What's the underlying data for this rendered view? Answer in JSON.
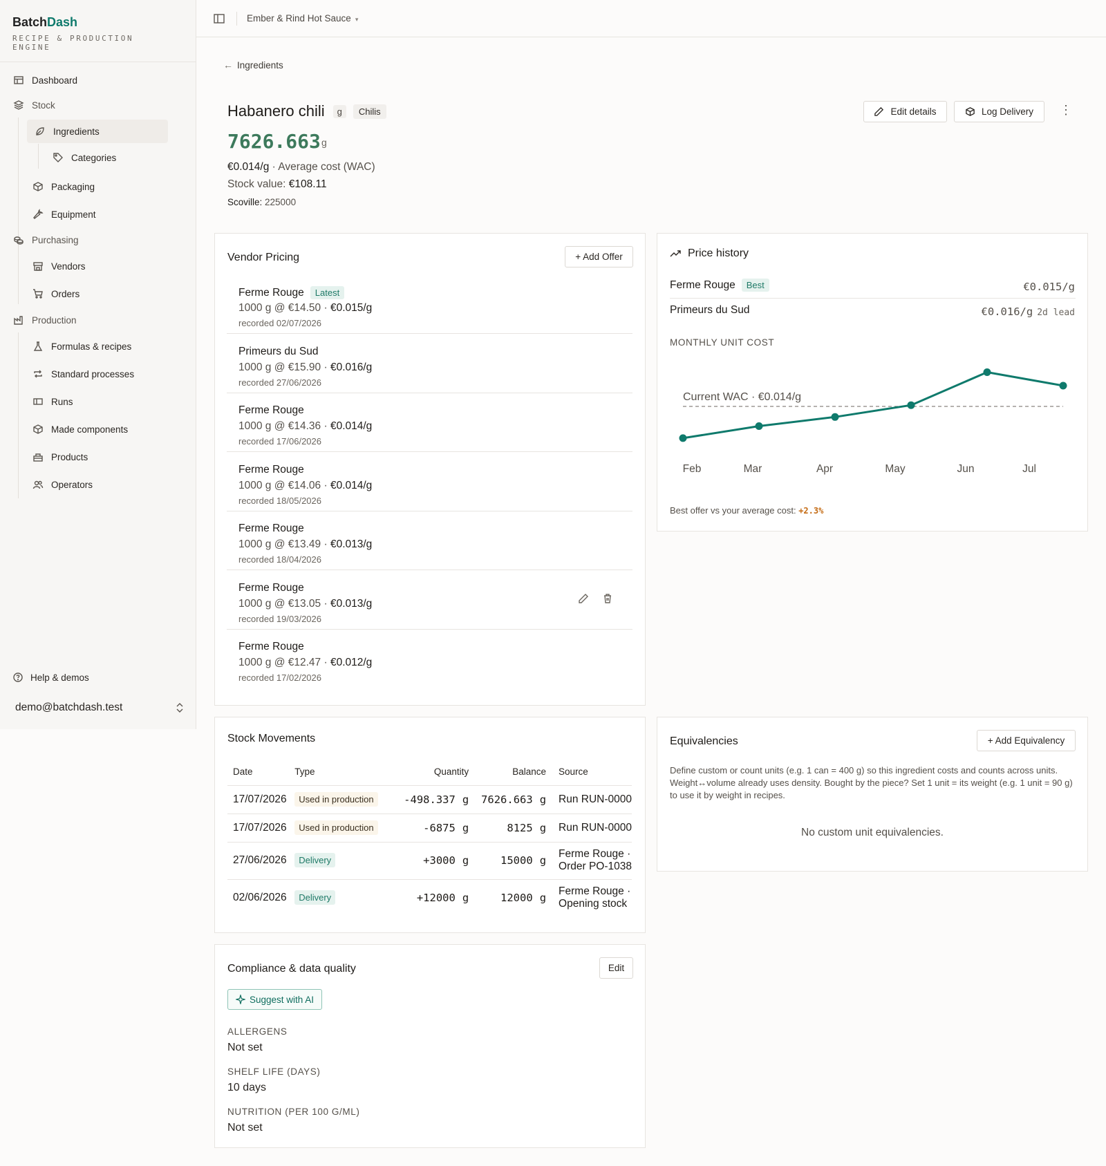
{
  "app": {
    "brand_main": "Batch",
    "brand_accent": "Dash",
    "brand_sub": "RECIPE & PRODUCTION ENGINE",
    "accent_color": "#0f7a6c"
  },
  "sidebar": {
    "dashboard": "Dashboard",
    "stock": "Stock",
    "ingredients": "Ingredients",
    "categories": "Categories",
    "packaging": "Packaging",
    "equipment": "Equipment",
    "purchasing": "Purchasing",
    "vendors": "Vendors",
    "orders": "Orders",
    "production": "Production",
    "formulas": "Formulas & recipes",
    "processes": "Standard processes",
    "runs": "Runs",
    "made_components": "Made components",
    "products": "Products",
    "operators": "Operators",
    "help": "Help & demos",
    "user_email": "demo@batchdash.test"
  },
  "topbar": {
    "workspace": "Ember & Rind Hot Sauce",
    "caret": "▾"
  },
  "header": {
    "back": "Ingredients",
    "title": "Habanero chili",
    "unit": "g",
    "category": "Chilis",
    "quantity": "7626.663",
    "quantity_unit": "g",
    "wac_value": "€0.014/g",
    "wac_label": " · Average cost (WAC)",
    "stock_value_label": "Stock value: ",
    "stock_value": "€108.11",
    "scoville_label": "Scoville: ",
    "scoville_value": "225000",
    "edit_button": "Edit details",
    "log_button": "Log Delivery"
  },
  "vendor_pricing": {
    "title": "Vendor Pricing",
    "add_button": "+ Add Offer",
    "offers": [
      {
        "vendor": "Ferme Rouge",
        "badge": "Latest",
        "qty_price": "1000 g @ €14.50 · ",
        "unit_price": "€0.015/g",
        "recorded": "recorded 02/07/2026"
      },
      {
        "vendor": "Primeurs du Sud",
        "badge": "",
        "qty_price": "1000 g @ €15.90 · ",
        "unit_price": "€0.016/g",
        "recorded": "recorded 27/06/2026"
      },
      {
        "vendor": "Ferme Rouge",
        "badge": "",
        "qty_price": "1000 g @ €14.36 · ",
        "unit_price": "€0.014/g",
        "recorded": "recorded 17/06/2026"
      },
      {
        "vendor": "Ferme Rouge",
        "badge": "",
        "qty_price": "1000 g @ €14.06 · ",
        "unit_price": "€0.014/g",
        "recorded": "recorded 18/05/2026"
      },
      {
        "vendor": "Ferme Rouge",
        "badge": "",
        "qty_price": "1000 g @ €13.49 · ",
        "unit_price": "€0.013/g",
        "recorded": "recorded 18/04/2026"
      },
      {
        "vendor": "Ferme Rouge",
        "badge": "",
        "qty_price": "1000 g @ €13.05 · ",
        "unit_price": "€0.013/g",
        "recorded": "recorded 19/03/2026"
      },
      {
        "vendor": "Ferme Rouge",
        "badge": "",
        "qty_price": "1000 g @ €12.47 · ",
        "unit_price": "€0.012/g",
        "recorded": "recorded 17/02/2026"
      }
    ]
  },
  "price_history": {
    "title": "Price history",
    "vendors": [
      {
        "name": "Ferme Rouge",
        "badge": "Best",
        "price": "€0.015/g",
        "lead": ""
      },
      {
        "name": "Primeurs du Sud",
        "badge": "",
        "price": "€0.016/g",
        "lead": "2d lead"
      }
    ],
    "section": "MONTHLY UNIT COST",
    "wac_annotation": "Current WAC · €0.014/g",
    "footnote_text": "Best offer vs your average cost: ",
    "footnote_value": "+2.3%"
  },
  "chart_data": {
    "type": "line",
    "categories": [
      "Feb",
      "Mar",
      "Apr",
      "May",
      "Jun",
      "Jul"
    ],
    "series": [
      {
        "values": [
          0.01247,
          0.01305,
          0.01349,
          0.01406,
          0.01565,
          0.015
        ]
      }
    ],
    "reference_line": {
      "label": "Current WAC · €0.014/g",
      "value": 0.014
    },
    "ylim": [
      0.012,
      0.016
    ],
    "grid": false,
    "color": "#0f7a6c"
  },
  "stock_movements": {
    "title": "Stock Movements",
    "headers": {
      "date": "Date",
      "type": "Type",
      "quantity": "Quantity",
      "balance": "Balance",
      "source": "Source"
    },
    "rows": [
      {
        "date": "17/07/2026",
        "type": "Used in production",
        "kind": "prod",
        "qty": "-498.337",
        "qty_unit": "g",
        "balance": "7626.663",
        "bal_unit": "g",
        "source1": "Run RUN-0000",
        "source2": ""
      },
      {
        "date": "17/07/2026",
        "type": "Used in production",
        "kind": "prod",
        "qty": "-6875",
        "qty_unit": "g",
        "balance": "8125",
        "bal_unit": "g",
        "source1": "Run RUN-0000",
        "source2": ""
      },
      {
        "date": "27/06/2026",
        "type": "Delivery",
        "kind": "del",
        "qty": "+3000",
        "qty_unit": "g",
        "balance": "15000",
        "bal_unit": "g",
        "source1": "Ferme Rouge · ",
        "source2": "Order PO-1038"
      },
      {
        "date": "02/06/2026",
        "type": "Delivery",
        "kind": "del",
        "qty": "+12000",
        "qty_unit": "g",
        "balance": "12000",
        "bal_unit": "g",
        "source1": "Ferme Rouge · ",
        "source2": "Opening stock"
      }
    ]
  },
  "compliance": {
    "title": "Compliance & data quality",
    "edit_button": "Edit",
    "ai_button": "Suggest with AI",
    "allergens_label": "ALLERGENS",
    "allergens_value": "Not set",
    "shelf_label": "SHELF LIFE (DAYS)",
    "shelf_value": "10 days",
    "nutrition_label": "NUTRITION (PER 100 G/ML)",
    "nutrition_value": "Not set"
  },
  "equivalencies": {
    "title": "Equivalencies",
    "add_button": "+ Add Equivalency",
    "description": "Define custom or count units (e.g. 1 can = 400 g) so this ingredient costs and counts across units. Weight↔volume already uses density. Bought by the piece? Set 1 unit = its weight (e.g. 1 unit = 90 g) to use it by weight in recipes.",
    "empty": "No custom unit equivalencies."
  }
}
